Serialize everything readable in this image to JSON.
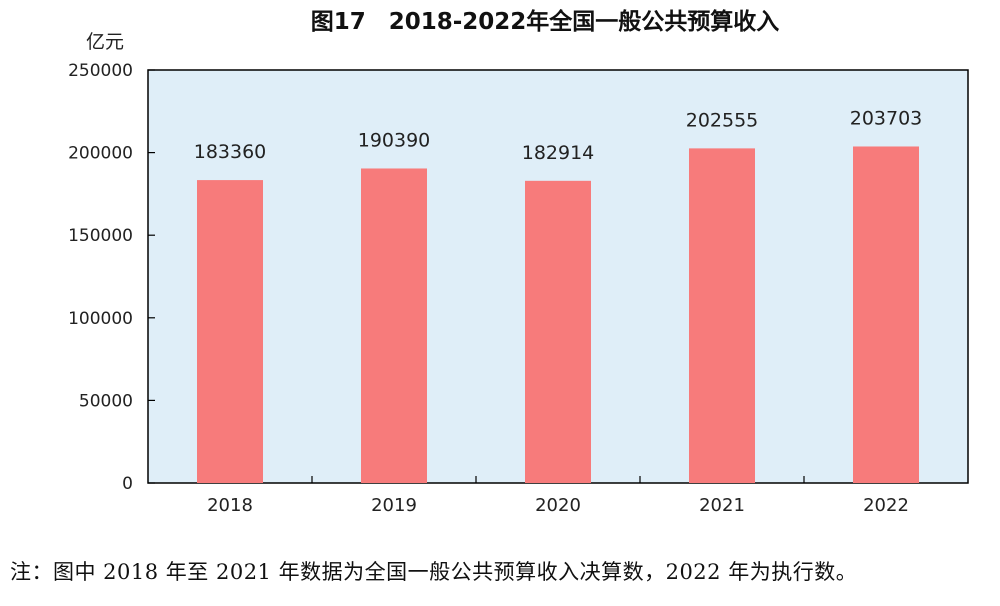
{
  "chart_data": {
    "type": "bar",
    "title": "图17　2018-2022年全国一般公共预算收入",
    "ylabel": "亿元",
    "xlabel": "",
    "categories": [
      "2018",
      "2019",
      "2020",
      "2021",
      "2022"
    ],
    "values": [
      183360,
      190390,
      182914,
      202555,
      203703
    ],
    "data_labels": [
      "183360",
      "190390",
      "182914",
      "202555",
      "203703"
    ],
    "ylim": [
      0,
      250000
    ],
    "yticks": [
      0,
      50000,
      100000,
      150000,
      200000,
      250000
    ],
    "ytick_labels": [
      "0",
      "50000",
      "100000",
      "150000",
      "200000",
      "250000"
    ],
    "grid": false,
    "colors": {
      "bar": "#f77b7b",
      "plot_bg": "#dfeef8",
      "axis": "#000000"
    }
  },
  "note": "注：图中 2018 年至 2021 年数据为全国一般公共预算收入决算数，2022 年为执行数。"
}
